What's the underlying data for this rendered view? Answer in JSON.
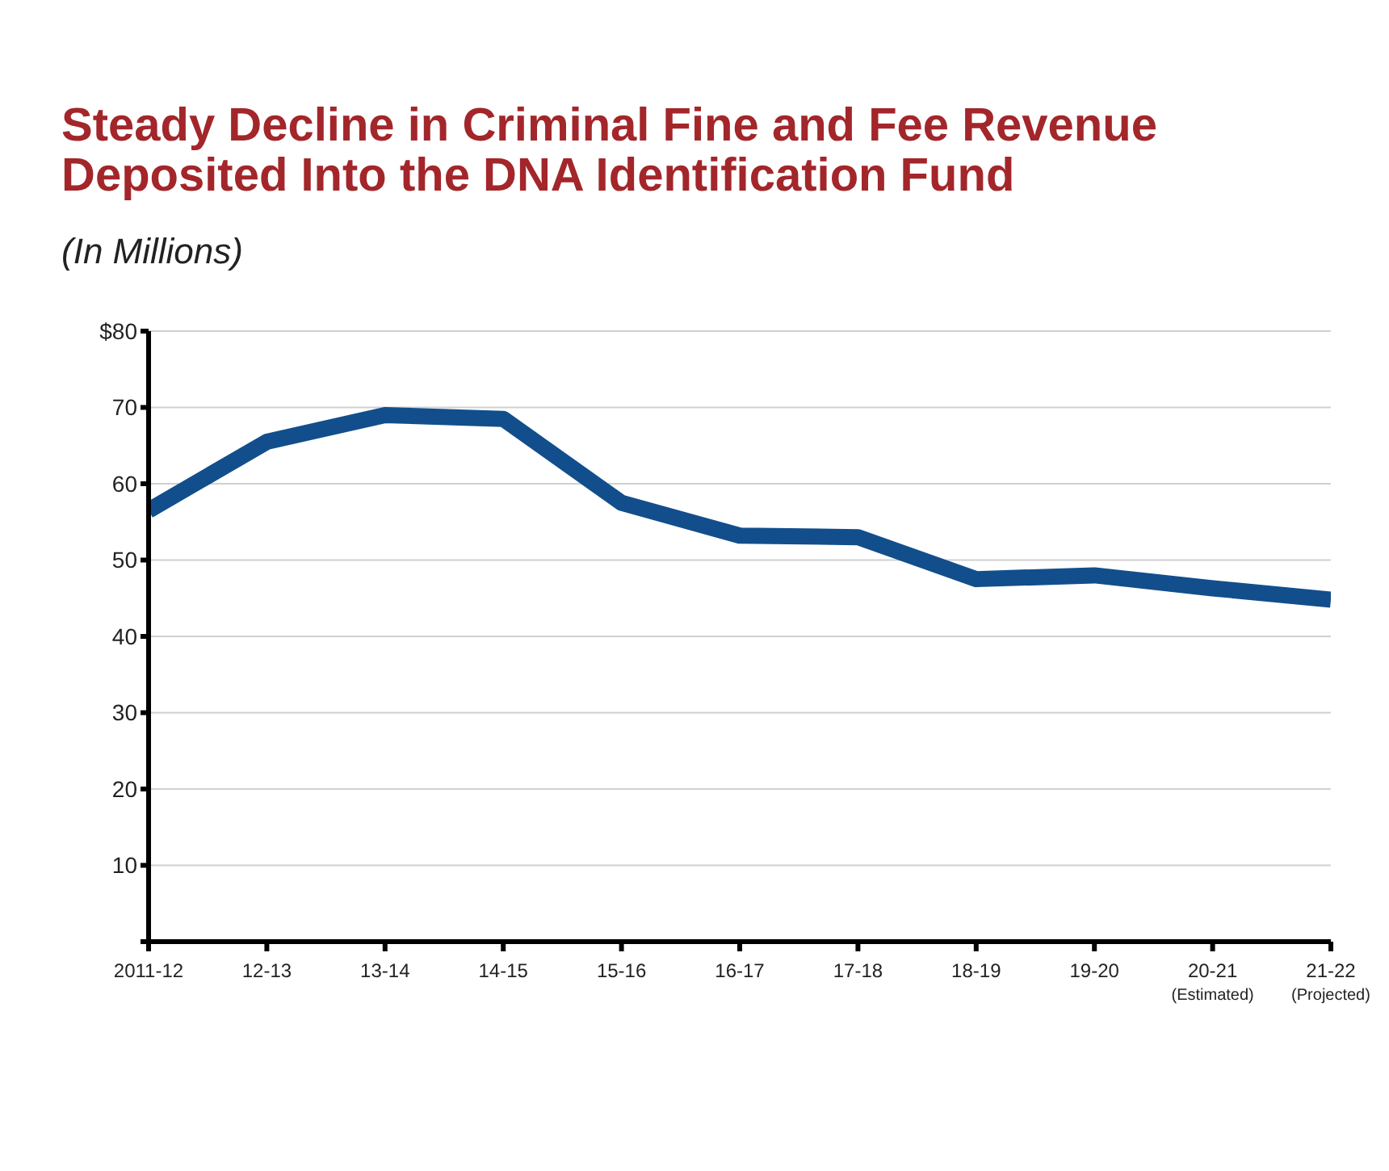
{
  "chart_data": {
    "type": "line",
    "title": "Steady Decline in Criminal Fine and Fee Revenue Deposited Into the DNA Identification Fund",
    "subtitle": "(In Millions)",
    "categories": [
      "2011-12",
      "12-13",
      "13-14",
      "14-15",
      "15-16",
      "16-17",
      "17-18",
      "18-19",
      "19-20",
      "20-21\n(Estimated)",
      "21-22\n(Projected)"
    ],
    "series": [
      {
        "color": "#124e8c",
        "values": [
          56.5,
          65.5,
          69,
          68.5,
          57.5,
          53.2,
          53,
          47.5,
          48,
          46.3,
          44.8
        ]
      }
    ],
    "ylim": [
      0,
      80
    ],
    "yticks": [
      {
        "value": 0,
        "label": null
      },
      10,
      20,
      30,
      40,
      50,
      60,
      70,
      {
        "value": 80,
        "label": "$80"
      }
    ],
    "grid": "y",
    "marker": "none",
    "line_style": "solid"
  }
}
